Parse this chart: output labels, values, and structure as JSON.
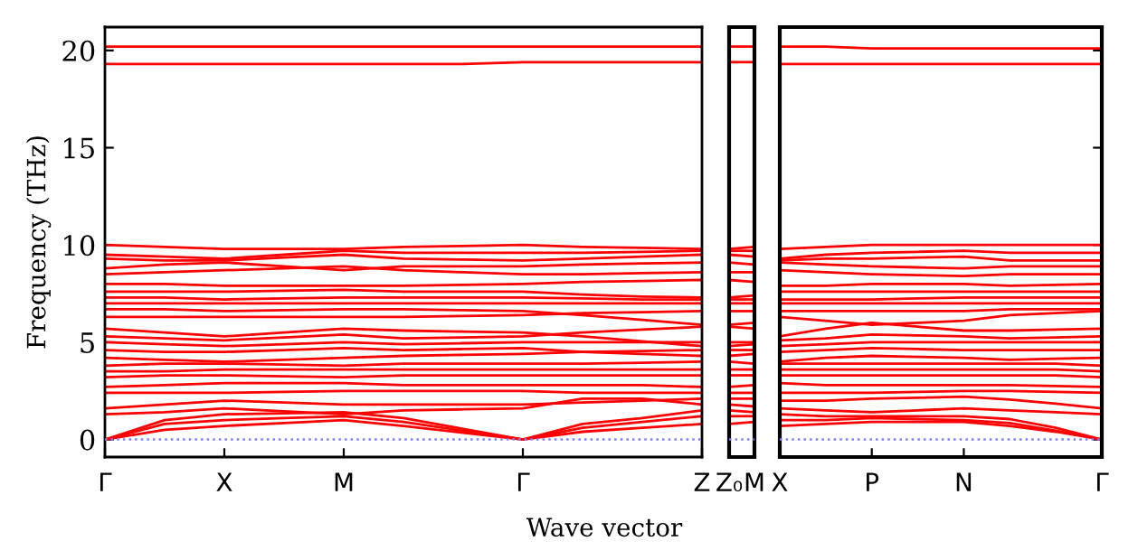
{
  "chart_data": [
    {
      "type": "line",
      "ylabel": "Frequency (THz)",
      "xlabel": "Wave vector",
      "categories": [
        "Γ",
        null,
        "X",
        null,
        "M",
        null,
        null,
        "Γ",
        null,
        null,
        "Z"
      ],
      "ylim": [
        -0.9,
        21.2
      ],
      "yticks": [
        0,
        5,
        10,
        15,
        20
      ],
      "ref_lines": [
        {
          "axis": "y",
          "value": 0,
          "color": "#8080ff",
          "line_style": "dotted"
        }
      ],
      "marker": "none",
      "line_style": "solid",
      "grid": false,
      "series": [
        {
          "color": "#ff0000",
          "values": [
            0,
            0.5,
            0.7,
            0.85,
            1.0,
            0.7,
            0.35,
            0,
            0.4,
            0.6,
            0.8
          ]
        },
        {
          "color": "#ff0000",
          "values": [
            0,
            0.8,
            1.0,
            1.1,
            1.2,
            0.9,
            0.45,
            0,
            0.6,
            0.9,
            1.2
          ]
        },
        {
          "color": "#ff0000",
          "values": [
            0,
            1.0,
            1.3,
            1.35,
            1.4,
            1.1,
            0.55,
            0,
            0.8,
            1.1,
            1.5
          ]
        },
        {
          "color": "#ff0000",
          "values": [
            1.3,
            1.4,
            1.6,
            1.45,
            1.3,
            1.5,
            1.55,
            1.6,
            2.1,
            2.1,
            1.8
          ]
        },
        {
          "color": "#ff0000",
          "values": [
            1.6,
            1.8,
            2.0,
            1.9,
            1.8,
            1.8,
            1.8,
            1.8,
            1.9,
            2.0,
            2.1
          ]
        },
        {
          "color": "#ff0000",
          "values": [
            2.4,
            2.4,
            2.4,
            2.45,
            2.5,
            2.5,
            2.5,
            2.5,
            2.4,
            2.4,
            2.4
          ]
        },
        {
          "color": "#ff0000",
          "values": [
            2.7,
            2.8,
            2.9,
            2.9,
            2.9,
            2.8,
            2.8,
            2.8,
            2.8,
            2.8,
            2.7
          ]
        },
        {
          "color": "#ff0000",
          "values": [
            3.2,
            3.3,
            3.3,
            3.25,
            3.2,
            3.3,
            3.3,
            3.3,
            3.3,
            3.3,
            3.3
          ]
        },
        {
          "color": "#ff0000",
          "values": [
            3.5,
            3.5,
            3.6,
            3.6,
            3.6,
            3.6,
            3.6,
            3.6,
            3.6,
            3.6,
            3.6
          ]
        },
        {
          "color": "#ff0000",
          "values": [
            3.8,
            3.9,
            3.9,
            3.85,
            3.8,
            3.9,
            3.9,
            3.9,
            3.9,
            3.95,
            4.0
          ]
        },
        {
          "color": "#ff0000",
          "values": [
            4.2,
            4.1,
            4.0,
            4.1,
            4.2,
            4.3,
            4.35,
            4.4,
            4.5,
            4.55,
            4.6
          ]
        },
        {
          "color": "#ff0000",
          "values": [
            4.6,
            4.5,
            4.5,
            4.6,
            4.7,
            4.6,
            4.65,
            4.7,
            4.5,
            4.4,
            4.3
          ]
        },
        {
          "color": "#ff0000",
          "values": [
            5.0,
            4.9,
            4.8,
            4.9,
            5.0,
            4.9,
            4.95,
            5.0,
            5.0,
            5.0,
            5.0
          ]
        },
        {
          "color": "#ff0000",
          "values": [
            5.3,
            5.2,
            5.1,
            5.25,
            5.4,
            5.2,
            5.25,
            5.3,
            5.5,
            5.65,
            5.8
          ]
        },
        {
          "color": "#ff0000",
          "values": [
            5.7,
            5.5,
            5.3,
            5.5,
            5.7,
            5.6,
            5.55,
            5.5,
            5.3,
            5.05,
            4.8
          ]
        },
        {
          "color": "#ff0000",
          "values": [
            6.3,
            6.3,
            6.3,
            6.3,
            6.3,
            6.3,
            6.35,
            6.4,
            6.5,
            6.55,
            6.6
          ]
        },
        {
          "color": "#ff0000",
          "values": [
            6.7,
            6.7,
            6.6,
            6.65,
            6.7,
            6.7,
            6.65,
            6.6,
            6.4,
            6.15,
            5.9
          ]
        },
        {
          "color": "#ff0000",
          "values": [
            7.0,
            7.0,
            7.0,
            7.0,
            7.0,
            7.0,
            7.0,
            7.0,
            7.0,
            7.0,
            7.0
          ]
        },
        {
          "color": "#ff0000",
          "values": [
            7.3,
            7.3,
            7.2,
            7.25,
            7.3,
            7.3,
            7.3,
            7.3,
            7.25,
            7.2,
            7.2
          ]
        },
        {
          "color": "#ff0000",
          "values": [
            7.6,
            7.6,
            7.6,
            7.65,
            7.7,
            7.6,
            7.6,
            7.6,
            7.45,
            7.35,
            7.3
          ]
        },
        {
          "color": "#ff0000",
          "values": [
            8.0,
            8.0,
            7.9,
            7.9,
            7.9,
            7.9,
            7.95,
            8.0,
            8.1,
            8.15,
            8.2
          ]
        },
        {
          "color": "#ff0000",
          "values": [
            8.5,
            8.6,
            8.7,
            8.8,
            8.9,
            8.7,
            8.6,
            8.5,
            8.5,
            8.55,
            8.6
          ]
        },
        {
          "color": "#ff0000",
          "values": [
            8.8,
            9.0,
            9.1,
            8.9,
            8.7,
            8.9,
            8.9,
            8.9,
            9.0,
            9.05,
            9.1
          ]
        },
        {
          "color": "#ff0000",
          "values": [
            9.3,
            9.2,
            9.2,
            9.35,
            9.5,
            9.3,
            9.25,
            9.2,
            9.3,
            9.4,
            9.5
          ]
        },
        {
          "color": "#ff0000",
          "values": [
            9.5,
            9.4,
            9.3,
            9.5,
            9.7,
            9.6,
            9.6,
            9.6,
            9.6,
            9.65,
            9.7
          ]
        },
        {
          "color": "#ff0000",
          "values": [
            10.0,
            9.9,
            9.8,
            9.8,
            9.8,
            9.9,
            9.95,
            10.0,
            9.9,
            9.85,
            9.8
          ]
        },
        {
          "color": "#ff0000",
          "values": [
            19.3,
            19.3,
            19.3,
            19.3,
            19.3,
            19.3,
            19.3,
            19.4,
            19.4,
            19.4,
            19.4
          ]
        },
        {
          "color": "#ff0000",
          "values": [
            20.2,
            20.2,
            20.2,
            20.2,
            20.2,
            20.2,
            20.2,
            20.2,
            20.2,
            20.2,
            20.2
          ]
        }
      ]
    },
    {
      "type": "line",
      "categories": [
        "Z₀",
        "M"
      ],
      "ylim": [
        -0.9,
        21.2
      ],
      "yticks": [
        0,
        5,
        10,
        15,
        20
      ],
      "tick_labels": "x",
      "ref_lines": [
        {
          "axis": "y",
          "value": 0,
          "color": "#8080ff",
          "line_style": "dotted"
        }
      ],
      "marker": "none",
      "line_style": "solid",
      "series": [
        {
          "color": "#ff0000",
          "values": [
            0.8,
            0.9
          ]
        },
        {
          "color": "#ff0000",
          "values": [
            1.2,
            1.2
          ]
        },
        {
          "color": "#ff0000",
          "values": [
            1.5,
            1.4
          ]
        },
        {
          "color": "#ff0000",
          "values": [
            1.8,
            1.7
          ]
        },
        {
          "color": "#ff0000",
          "values": [
            2.1,
            2.1
          ]
        },
        {
          "color": "#ff0000",
          "values": [
            2.4,
            2.4
          ]
        },
        {
          "color": "#ff0000",
          "values": [
            2.7,
            2.8
          ]
        },
        {
          "color": "#ff0000",
          "values": [
            3.3,
            3.3
          ]
        },
        {
          "color": "#ff0000",
          "values": [
            3.6,
            3.6
          ]
        },
        {
          "color": "#ff0000",
          "values": [
            4.0,
            3.9
          ]
        },
        {
          "color": "#ff0000",
          "values": [
            4.3,
            4.4
          ]
        },
        {
          "color": "#ff0000",
          "values": [
            4.6,
            4.6
          ]
        },
        {
          "color": "#ff0000",
          "values": [
            4.8,
            4.9
          ]
        },
        {
          "color": "#ff0000",
          "values": [
            5.0,
            5.0
          ]
        },
        {
          "color": "#ff0000",
          "values": [
            5.8,
            5.7
          ]
        },
        {
          "color": "#ff0000",
          "values": [
            5.9,
            6.0
          ]
        },
        {
          "color": "#ff0000",
          "values": [
            6.6,
            6.6
          ]
        },
        {
          "color": "#ff0000",
          "values": [
            7.0,
            7.0
          ]
        },
        {
          "color": "#ff0000",
          "values": [
            7.2,
            7.2
          ]
        },
        {
          "color": "#ff0000",
          "values": [
            7.3,
            7.4
          ]
        },
        {
          "color": "#ff0000",
          "values": [
            8.2,
            8.1
          ]
        },
        {
          "color": "#ff0000",
          "values": [
            8.6,
            8.6
          ]
        },
        {
          "color": "#ff0000",
          "values": [
            9.1,
            9.0
          ]
        },
        {
          "color": "#ff0000",
          "values": [
            9.5,
            9.4
          ]
        },
        {
          "color": "#ff0000",
          "values": [
            9.7,
            9.7
          ]
        },
        {
          "color": "#ff0000",
          "values": [
            9.8,
            9.9
          ]
        },
        {
          "color": "#ff0000",
          "values": [
            19.4,
            19.4
          ]
        },
        {
          "color": "#ff0000",
          "values": [
            20.2,
            20.2
          ]
        }
      ]
    },
    {
      "type": "line",
      "categories": [
        "X",
        null,
        "P",
        null,
        "N",
        null,
        null,
        "Γ"
      ],
      "ylim": [
        -0.9,
        21.2
      ],
      "yticks": [
        0,
        5,
        10,
        15,
        20
      ],
      "tick_labels": "x",
      "ref_lines": [
        {
          "axis": "y",
          "value": 0,
          "color": "#8080ff",
          "line_style": "dotted"
        }
      ],
      "marker": "none",
      "line_style": "solid",
      "grid": false,
      "series": [
        {
          "color": "#ff0000",
          "values": [
            0.7,
            0.8,
            0.9,
            0.9,
            0.9,
            0.7,
            0.4,
            0
          ]
        },
        {
          "color": "#ff0000",
          "values": [
            1.0,
            1.0,
            1.1,
            1.05,
            1.0,
            0.85,
            0.45,
            0
          ]
        },
        {
          "color": "#ff0000",
          "values": [
            1.3,
            1.2,
            1.2,
            1.2,
            1.2,
            1.05,
            0.6,
            0
          ]
        },
        {
          "color": "#ff0000",
          "values": [
            1.6,
            1.5,
            1.4,
            1.5,
            1.6,
            1.5,
            1.4,
            1.3
          ]
        },
        {
          "color": "#ff0000",
          "values": [
            2.0,
            2.0,
            2.1,
            2.15,
            2.2,
            2.05,
            1.85,
            1.6
          ]
        },
        {
          "color": "#ff0000",
          "values": [
            2.4,
            2.4,
            2.4,
            2.45,
            2.5,
            2.5,
            2.45,
            2.4
          ]
        },
        {
          "color": "#ff0000",
          "values": [
            2.9,
            2.8,
            2.8,
            2.8,
            2.8,
            2.8,
            2.75,
            2.7
          ]
        },
        {
          "color": "#ff0000",
          "values": [
            3.3,
            3.3,
            3.3,
            3.3,
            3.3,
            3.3,
            3.3,
            3.2
          ]
        },
        {
          "color": "#ff0000",
          "values": [
            3.6,
            3.6,
            3.6,
            3.6,
            3.6,
            3.6,
            3.6,
            3.5
          ]
        },
        {
          "color": "#ff0000",
          "values": [
            3.9,
            3.9,
            3.9,
            3.9,
            3.9,
            3.9,
            3.9,
            3.8
          ]
        },
        {
          "color": "#ff0000",
          "values": [
            4.0,
            4.2,
            4.3,
            4.25,
            4.2,
            4.1,
            4.15,
            4.2
          ]
        },
        {
          "color": "#ff0000",
          "values": [
            4.5,
            4.6,
            4.7,
            4.65,
            4.6,
            4.6,
            4.6,
            4.6
          ]
        },
        {
          "color": "#ff0000",
          "values": [
            4.8,
            4.9,
            5.0,
            5.0,
            5.0,
            5.0,
            5.0,
            5.0
          ]
        },
        {
          "color": "#ff0000",
          "values": [
            5.1,
            5.2,
            5.4,
            5.35,
            5.3,
            5.2,
            5.25,
            5.3
          ]
        },
        {
          "color": "#ff0000",
          "values": [
            5.3,
            5.7,
            6.0,
            5.8,
            5.6,
            5.6,
            5.65,
            5.7
          ]
        },
        {
          "color": "#ff0000",
          "values": [
            6.3,
            6.1,
            5.9,
            6.0,
            6.1,
            6.4,
            6.5,
            6.6
          ]
        },
        {
          "color": "#ff0000",
          "values": [
            6.6,
            6.6,
            6.6,
            6.6,
            6.6,
            6.7,
            6.7,
            6.7
          ]
        },
        {
          "color": "#ff0000",
          "values": [
            7.0,
            7.0,
            7.0,
            7.0,
            7.0,
            7.0,
            7.0,
            7.0
          ]
        },
        {
          "color": "#ff0000",
          "values": [
            7.2,
            7.2,
            7.2,
            7.25,
            7.3,
            7.3,
            7.3,
            7.3
          ]
        },
        {
          "color": "#ff0000",
          "values": [
            7.6,
            7.6,
            7.6,
            7.6,
            7.6,
            7.6,
            7.6,
            7.6
          ]
        },
        {
          "color": "#ff0000",
          "values": [
            7.9,
            7.9,
            8.0,
            8.0,
            8.0,
            7.9,
            7.95,
            8.0
          ]
        },
        {
          "color": "#ff0000",
          "values": [
            8.7,
            8.6,
            8.5,
            8.45,
            8.4,
            8.5,
            8.5,
            8.5
          ]
        },
        {
          "color": "#ff0000",
          "values": [
            9.1,
            9.0,
            8.9,
            8.85,
            8.8,
            8.9,
            8.9,
            8.9
          ]
        },
        {
          "color": "#ff0000",
          "values": [
            9.2,
            9.3,
            9.3,
            9.35,
            9.4,
            9.2,
            9.2,
            9.2
          ]
        },
        {
          "color": "#ff0000",
          "values": [
            9.3,
            9.5,
            9.6,
            9.65,
            9.7,
            9.6,
            9.6,
            9.6
          ]
        },
        {
          "color": "#ff0000",
          "values": [
            9.8,
            9.9,
            10.0,
            10.0,
            10.0,
            10.0,
            10.0,
            10.0
          ]
        },
        {
          "color": "#ff0000",
          "values": [
            19.3,
            19.3,
            19.3,
            19.3,
            19.3,
            19.3,
            19.3,
            19.3
          ]
        },
        {
          "color": "#ff0000",
          "values": [
            20.2,
            20.2,
            20.1,
            20.1,
            20.1,
            20.1,
            20.1,
            20.1
          ]
        }
      ]
    }
  ]
}
